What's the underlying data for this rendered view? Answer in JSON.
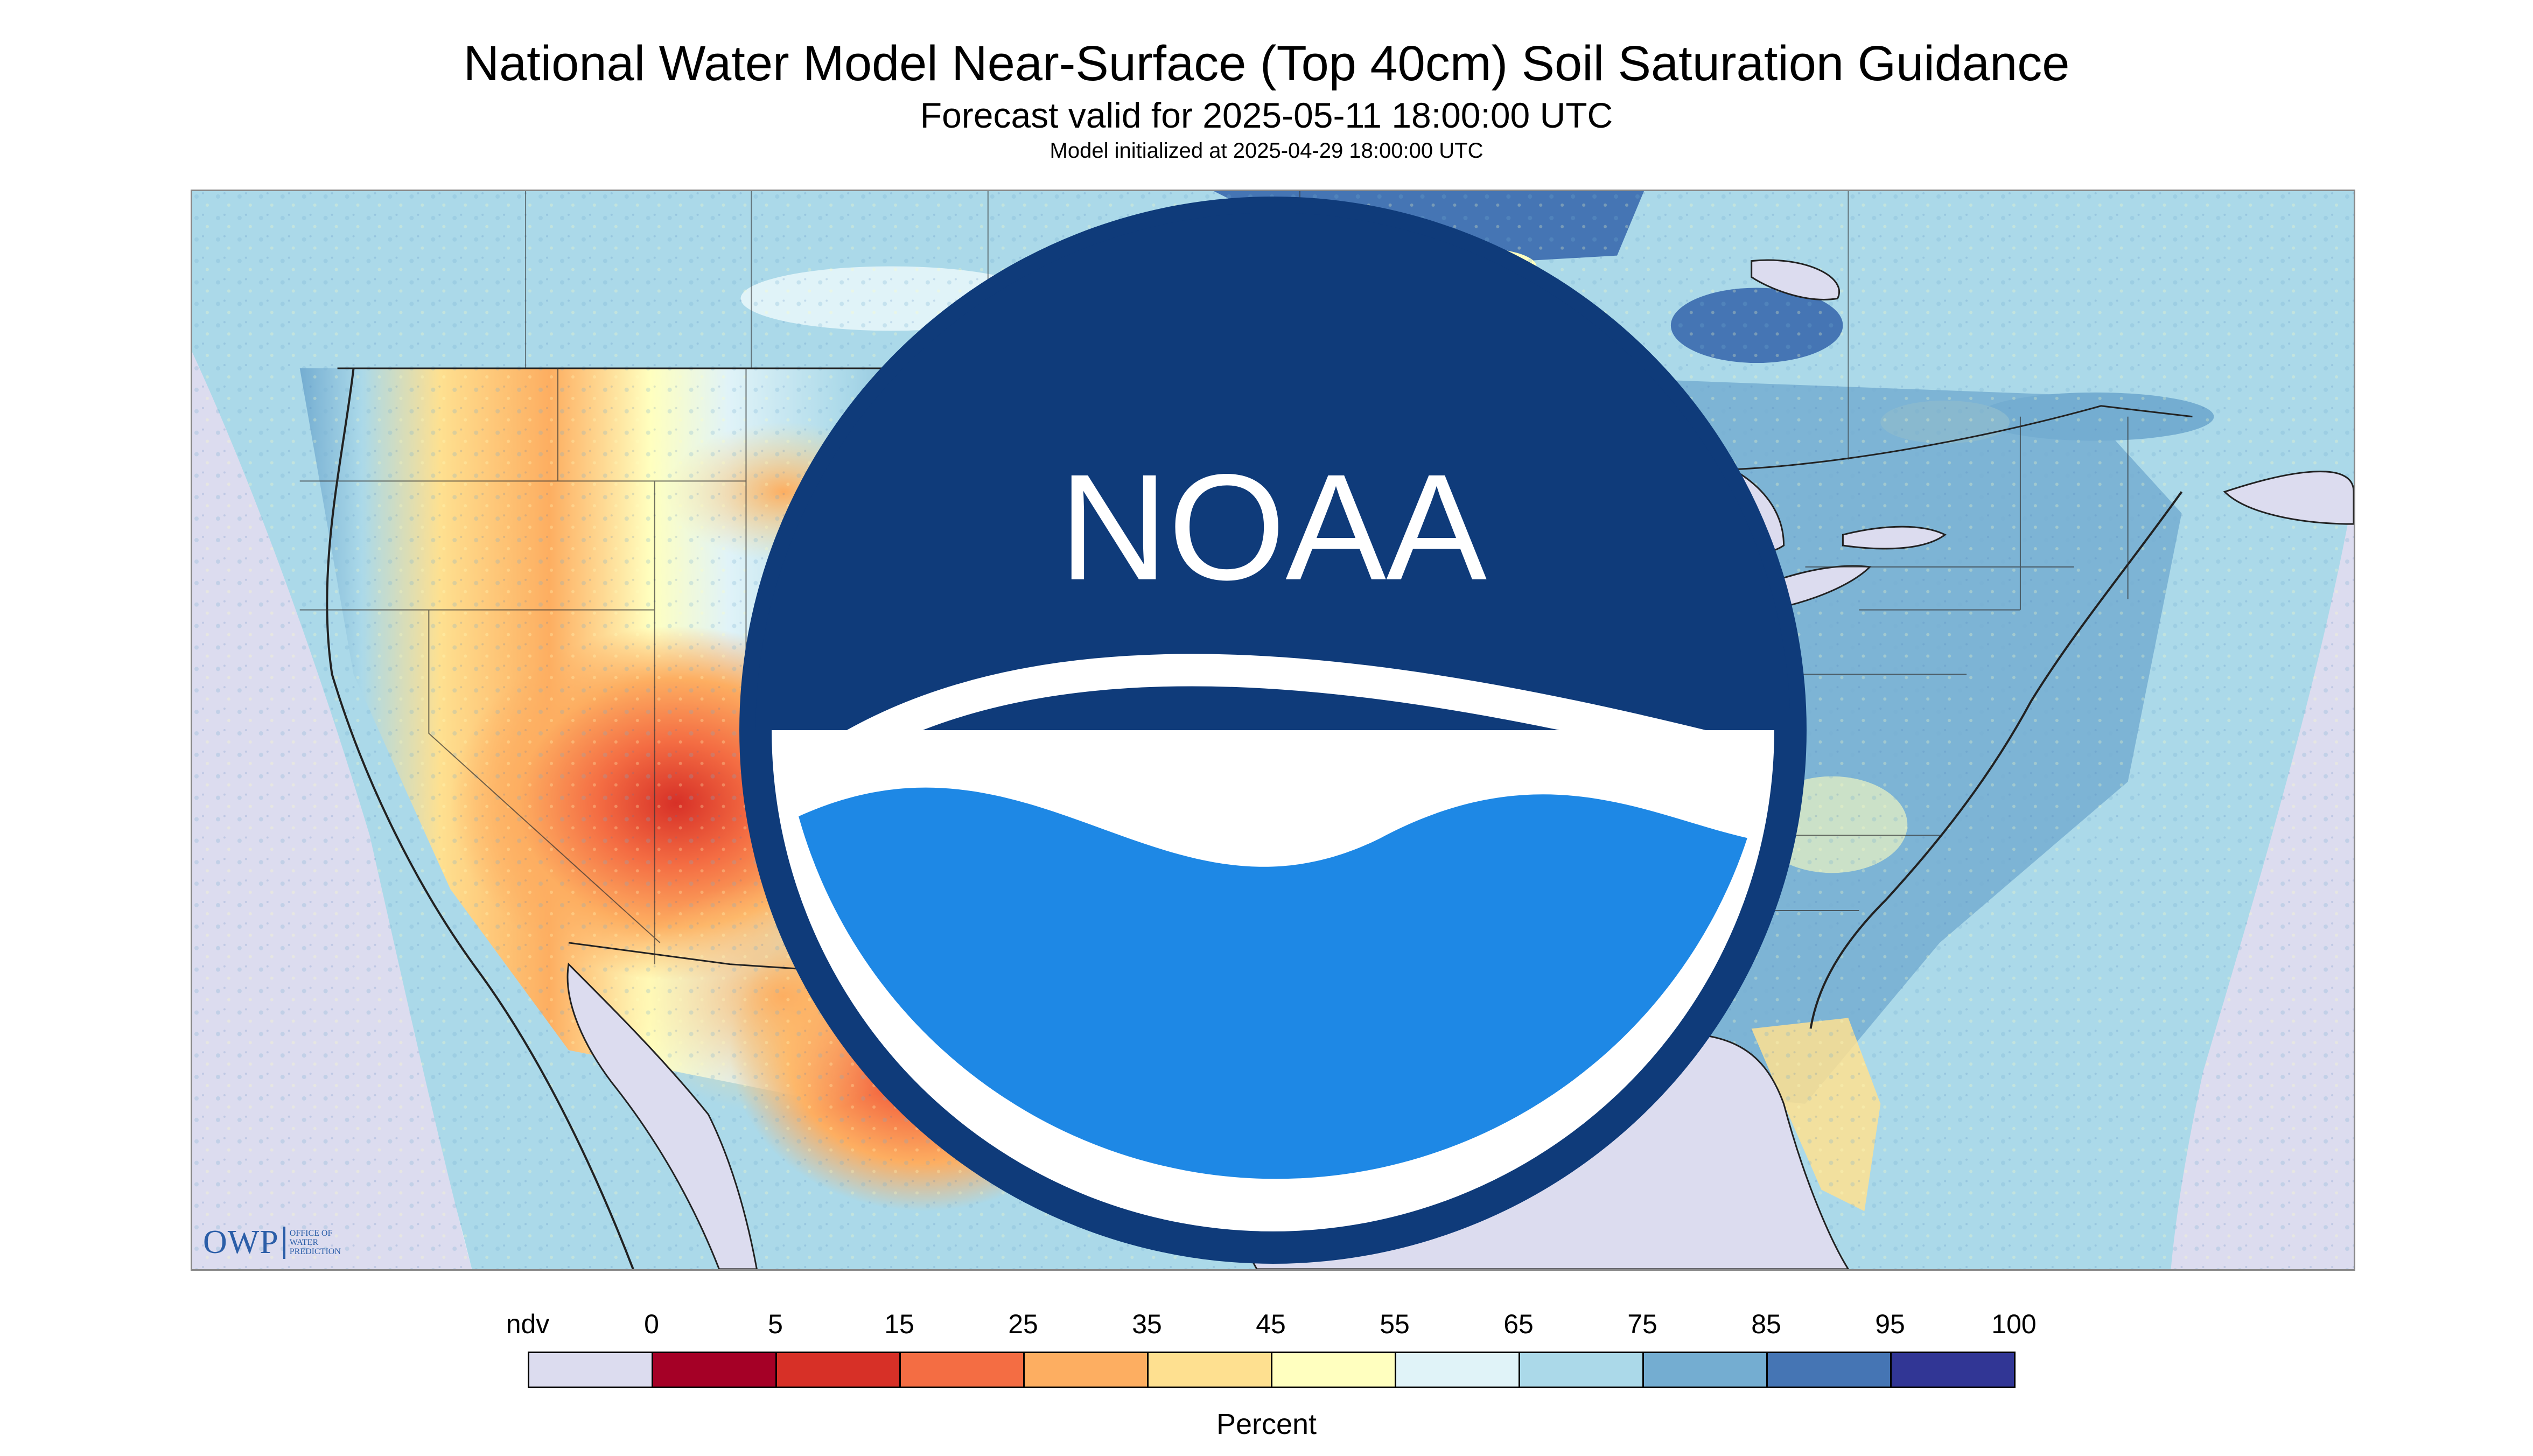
{
  "header": {
    "title": "National Water Model Near-Surface (Top 40cm) Soil Saturation Guidance",
    "subtitle": "Forecast valid for 2025-05-11 18:00:00 UTC",
    "init": "Model initialized at 2025-04-29 18:00:00 UTC"
  },
  "logos": {
    "owp_big": "OWP",
    "owp_small_1": "OFFICE OF",
    "owp_small_2": "WATER",
    "owp_small_3": "PREDICTION",
    "noaa_text": "NOAA"
  },
  "legend": {
    "unit": "Percent",
    "ndv_label": "ndv",
    "ndv_color": "#dcdcef",
    "ticks": [
      "0",
      "5",
      "15",
      "25",
      "35",
      "45",
      "55",
      "65",
      "75",
      "85",
      "95",
      "100"
    ],
    "colors": [
      "#a50026",
      "#d73027",
      "#f46d43",
      "#fdae61",
      "#fee090",
      "#ffffbf",
      "#e0f3f8",
      "#abd9e9",
      "#74add1",
      "#4575b4",
      "#313695"
    ]
  },
  "map": {
    "region": "Contiguous United States",
    "nodata_color": "#dcdcef",
    "water_color": "#dcdcef",
    "boundary_color": "#222222"
  }
}
